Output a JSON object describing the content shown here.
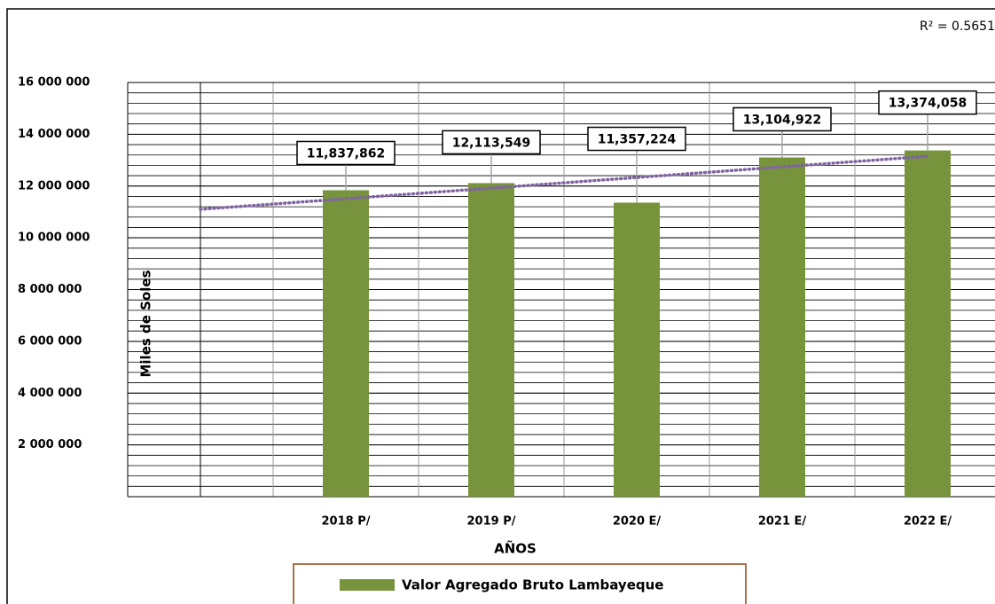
{
  "chart_data": {
    "type": "bar",
    "annotation": "R² = 0.5651",
    "y_axis_label": "Miles de Soles",
    "x_axis_label": "AÑOS",
    "categories": [
      null,
      "2018 P/",
      "2019 P/",
      "2020 E/",
      "2021 E/",
      "2022 E/"
    ],
    "series": [
      {
        "name": "Valor Agregado Bruto Lambayeque",
        "color": "#77933c",
        "values": [
          null,
          11837862,
          12113549,
          11357224,
          13104922,
          13374058
        ],
        "value_labels": [
          null,
          "11,837,862",
          "12,113,549",
          "11,357,224",
          "13,104,922",
          "13,374,058"
        ]
      }
    ],
    "trendline": {
      "color": "#8064a2",
      "values": [
        11100000,
        13150000
      ]
    },
    "ylim": [
      0,
      16000000
    ],
    "yticks": [
      {
        "value": 2000000,
        "label": "2 000 000"
      },
      {
        "value": 4000000,
        "label": "4 000 000"
      },
      {
        "value": 6000000,
        "label": "6 000 000"
      },
      {
        "value": 8000000,
        "label": "8 000 000"
      },
      {
        "value": 10000000,
        "label": "10 000 000"
      },
      {
        "value": 12000000,
        "label": "12 000 000"
      },
      {
        "value": 14000000,
        "label": "14 000 000"
      },
      {
        "value": 16000000,
        "label": "16 000 000"
      }
    ],
    "minor_step": 400000,
    "grid": true,
    "legend": "bottom"
  }
}
